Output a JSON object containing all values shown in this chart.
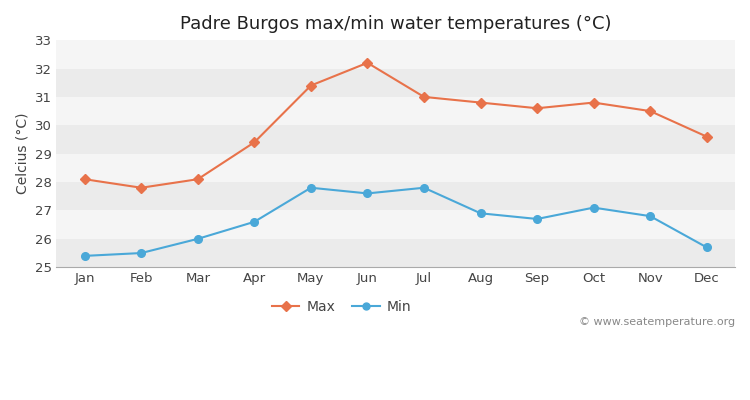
{
  "title": "Padre Burgos max/min water temperatures (°C)",
  "ylabel": "Celcius (°C)",
  "months": [
    "Jan",
    "Feb",
    "Mar",
    "Apr",
    "May",
    "Jun",
    "Jul",
    "Aug",
    "Sep",
    "Oct",
    "Nov",
    "Dec"
  ],
  "max_temps": [
    28.1,
    27.8,
    28.1,
    29.4,
    31.4,
    32.2,
    31.0,
    30.8,
    30.6,
    30.8,
    30.5,
    29.6
  ],
  "min_temps": [
    25.4,
    25.5,
    26.0,
    26.6,
    27.8,
    27.6,
    27.8,
    26.9,
    26.7,
    27.1,
    26.8,
    25.7
  ],
  "max_color": "#e8724a",
  "min_color": "#4aa8d8",
  "fig_bg_color": "#ffffff",
  "plot_bg_color": "#ffffff",
  "band_color_light": "#ebebeb",
  "band_color_white": "#f5f5f5",
  "grid_color": "#cccccc",
  "ylim": [
    25,
    33
  ],
  "yticks": [
    25,
    26,
    27,
    28,
    29,
    30,
    31,
    32,
    33
  ],
  "legend_labels": [
    "Max",
    "Min"
  ],
  "watermark": "© www.seatemperature.org",
  "title_fontsize": 13,
  "label_fontsize": 10,
  "tick_fontsize": 9.5,
  "watermark_fontsize": 8
}
